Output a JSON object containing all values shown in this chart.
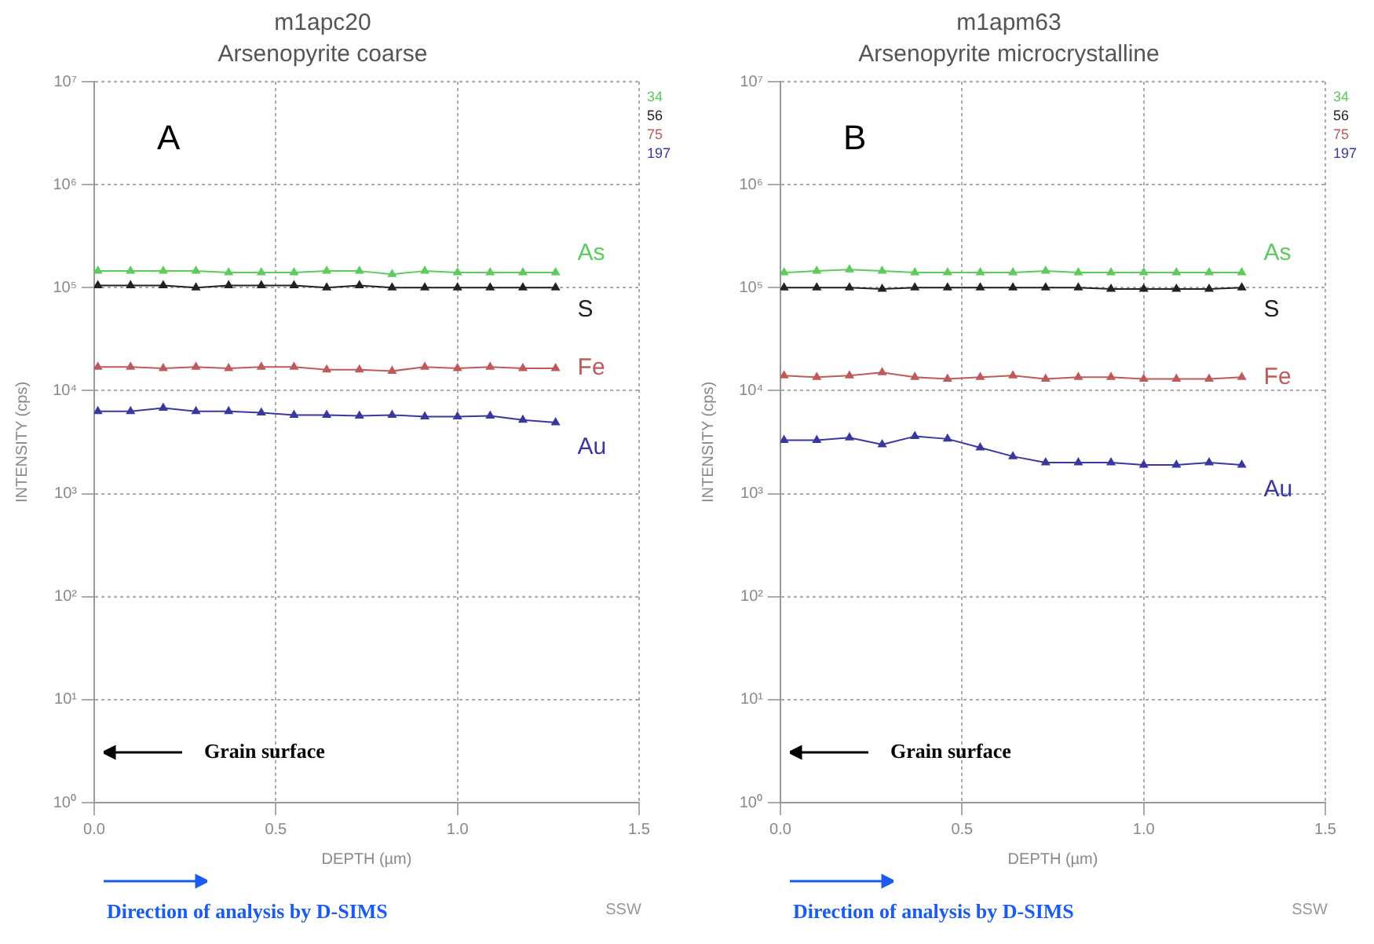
{
  "chart_data": [
    {
      "type": "line",
      "title": "m1apc20",
      "subtitle": "Arsenopyrite coarse",
      "xlabel": "DEPTH (µm)",
      "ylabel": "INTENSITY (cps)",
      "log": "y",
      "grid": true,
      "legend": false,
      "marker": "triangle",
      "line_style": "solid",
      "x": [
        0.01,
        0.1,
        0.19,
        0.28,
        0.37,
        0.46,
        0.55,
        0.64,
        0.73,
        0.82,
        0.91,
        1.0,
        1.09,
        1.18,
        1.27
      ],
      "xlim": [
        0,
        1.5
      ],
      "xticks": [
        {
          "value": 0,
          "label": "0.0"
        },
        {
          "value": 0.5,
          "label": "0.5"
        },
        {
          "value": 1,
          "label": "1.0"
        },
        {
          "value": 1.5,
          "label": "1.5"
        }
      ],
      "ylim": [
        1,
        10000000
      ],
      "yticks": [
        {
          "value": 1,
          "label": "10⁰"
        },
        {
          "value": 10,
          "label": "10¹"
        },
        {
          "value": 100,
          "label": "10²"
        },
        {
          "value": 1000,
          "label": "10³"
        },
        {
          "value": 10000,
          "label": "10⁴"
        },
        {
          "value": 100000,
          "label": "10⁵"
        },
        {
          "value": 1000000,
          "label": "10⁶"
        },
        {
          "value": 10000000,
          "label": "10⁷"
        }
      ],
      "series": [
        {
          "name": "As",
          "color": "#5ccc5c",
          "values": [
            145000,
            145000,
            145000,
            145000,
            140000,
            140000,
            140000,
            145000,
            145000,
            135000,
            145000,
            140000,
            140000,
            140000,
            140000
          ]
        },
        {
          "name": "S",
          "color": "#222222",
          "values": [
            105000,
            105000,
            105000,
            100000,
            105000,
            105000,
            105000,
            100000,
            105000,
            100000,
            100000,
            100000,
            100000,
            100000,
            100000
          ]
        },
        {
          "name": "Fe",
          "color": "#c05a5a",
          "values": [
            17000,
            17000,
            16500,
            17000,
            16500,
            17000,
            17000,
            16000,
            16000,
            15500,
            17000,
            16500,
            17000,
            16500,
            16500
          ]
        },
        {
          "name": "Au",
          "color": "#3838a0",
          "values": [
            6300,
            6300,
            6800,
            6300,
            6300,
            6100,
            5800,
            5800,
            5700,
            5800,
            5600,
            5600,
            5700,
            5200,
            4900
          ]
        }
      ],
      "annotations": [
        "A",
        "Grain surface",
        "Direction of analysis by D-SIMS",
        "SSW",
        "34",
        "56",
        "75",
        "197"
      ]
    },
    {
      "type": "line",
      "title": "m1apm63",
      "subtitle": "Arsenopyrite microcrystalline",
      "xlabel": "DEPTH (µm)",
      "ylabel": "INTENSITY (cps)",
      "log": "y",
      "grid": true,
      "legend": false,
      "marker": "triangle",
      "line_style": "solid",
      "x": [
        0.01,
        0.1,
        0.19,
        0.28,
        0.37,
        0.46,
        0.55,
        0.64,
        0.73,
        0.82,
        0.91,
        1.0,
        1.09,
        1.18,
        1.27
      ],
      "xlim": [
        0,
        1.5
      ],
      "xticks": [
        {
          "value": 0,
          "label": "0.0"
        },
        {
          "value": 0.5,
          "label": "0.5"
        },
        {
          "value": 1,
          "label": "1.0"
        },
        {
          "value": 1.5,
          "label": "1.5"
        }
      ],
      "ylim": [
        1,
        10000000
      ],
      "yticks": [
        {
          "value": 1,
          "label": "10⁰"
        },
        {
          "value": 10,
          "label": "10¹"
        },
        {
          "value": 100,
          "label": "10²"
        },
        {
          "value": 1000,
          "label": "10³"
        },
        {
          "value": 10000,
          "label": "10⁴"
        },
        {
          "value": 100000,
          "label": "10⁵"
        },
        {
          "value": 1000000,
          "label": "10⁶"
        },
        {
          "value": 10000000,
          "label": "10⁷"
        }
      ],
      "series": [
        {
          "name": "As",
          "color": "#5ccc5c",
          "values": [
            140000,
            145000,
            150000,
            145000,
            140000,
            140000,
            140000,
            140000,
            145000,
            140000,
            140000,
            140000,
            140000,
            140000,
            140000
          ]
        },
        {
          "name": "S",
          "color": "#222222",
          "values": [
            100000,
            100000,
            100000,
            97000,
            100000,
            100000,
            100000,
            100000,
            100000,
            100000,
            97000,
            97000,
            97000,
            97000,
            100000
          ]
        },
        {
          "name": "Fe",
          "color": "#c05a5a",
          "values": [
            14000,
            13500,
            14000,
            15000,
            13500,
            13000,
            13500,
            14000,
            13000,
            13500,
            13500,
            13000,
            13000,
            13000,
            13500
          ]
        },
        {
          "name": "Au",
          "color": "#3838a0",
          "values": [
            3300,
            3300,
            3500,
            3000,
            3600,
            3400,
            2800,
            2300,
            2000,
            2000,
            2000,
            1900,
            1900,
            2000,
            1900
          ]
        }
      ],
      "annotations": [
        "B",
        "Grain surface",
        "Direction of analysis by D-SIMS",
        "SSW",
        "34",
        "56",
        "75",
        "197"
      ]
    }
  ]
}
